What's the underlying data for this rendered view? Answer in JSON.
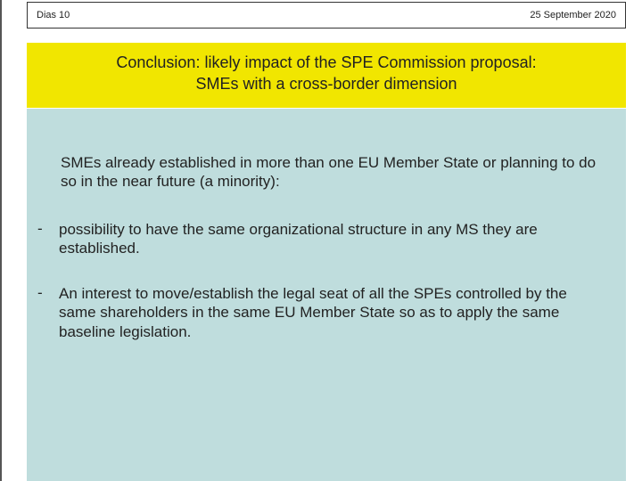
{
  "header": {
    "slide_number": "Dias 10",
    "date": "25 September 2020"
  },
  "title": {
    "line1": "Conclusion: likely impact of the SPE Commission proposal:",
    "line2": "SMEs with a cross-border dimension"
  },
  "content": {
    "intro": "SMEs already established in more than one EU Member State or planning to do so in the near future (a minority):",
    "bullets": [
      "possibility to have the same organizational structure in any MS they are established.",
      "An interest to move/establish the legal seat of all the SPEs controlled by the same shareholders in the same EU Member State so as to apply the same baseline legislation."
    ]
  },
  "colors": {
    "title_bg": "#f1e600",
    "content_bg": "#bfdddd",
    "border": "#333333",
    "text": "#222222",
    "slide_border": "#555555"
  },
  "typography": {
    "font_family": "Verdana",
    "header_fontsize": 11,
    "title_fontsize": 18,
    "body_fontsize": 17
  }
}
